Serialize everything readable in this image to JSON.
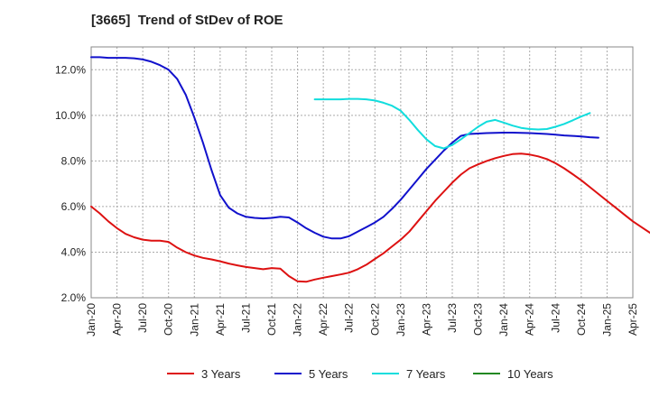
{
  "chart_data": {
    "type": "line",
    "title": "[3665]  Trend of StDev of ROE",
    "xlabel": "",
    "ylabel": "",
    "x_ticks": [
      "Jan-20",
      "Apr-20",
      "Jul-20",
      "Oct-20",
      "Jan-21",
      "Apr-21",
      "Jul-21",
      "Oct-21",
      "Jan-22",
      "Apr-22",
      "Jul-22",
      "Oct-22",
      "Jan-23",
      "Apr-23",
      "Jul-23",
      "Oct-23",
      "Jan-24",
      "Apr-24",
      "Jul-24",
      "Oct-24",
      "Jan-25",
      "Apr-25"
    ],
    "ylim": [
      2.0,
      13.0
    ],
    "y_ticks": [
      2.0,
      4.0,
      6.0,
      8.0,
      10.0,
      12.0
    ],
    "y_tick_labels": [
      "2.0%",
      "4.0%",
      "6.0%",
      "8.0%",
      "10.0%",
      "12.0%"
    ],
    "grid": true,
    "legend_position": "bottom",
    "series": [
      {
        "name": "3 Years",
        "color": "#dd1111",
        "start_index": 0,
        "values": [
          6.0,
          5.7,
          5.35,
          5.05,
          4.8,
          4.65,
          4.55,
          4.5,
          4.5,
          4.45,
          4.2,
          4.0,
          3.85,
          3.75,
          3.68,
          3.6,
          3.5,
          3.42,
          3.35,
          3.3,
          3.25,
          3.3,
          3.28,
          2.95,
          2.72,
          2.7,
          2.8,
          2.88,
          2.95,
          3.02,
          3.1,
          3.25,
          3.45,
          3.7,
          3.95,
          4.25,
          4.55,
          4.9,
          5.35,
          5.8,
          6.25,
          6.65,
          7.05,
          7.4,
          7.68,
          7.85,
          8.0,
          8.12,
          8.22,
          8.3,
          8.32,
          8.28,
          8.2,
          8.08,
          7.9,
          7.68,
          7.42,
          7.15,
          6.85,
          6.55,
          6.25,
          5.95,
          5.65,
          5.35,
          5.1,
          4.85
        ]
      },
      {
        "name": "5 Years",
        "color": "#1111cc",
        "start_index": 0,
        "values": [
          12.55,
          12.55,
          12.52,
          12.52,
          12.52,
          12.5,
          12.45,
          12.35,
          12.2,
          12.0,
          11.6,
          10.9,
          9.9,
          8.8,
          7.6,
          6.5,
          5.95,
          5.7,
          5.55,
          5.5,
          5.48,
          5.5,
          5.55,
          5.52,
          5.3,
          5.05,
          4.85,
          4.68,
          4.6,
          4.6,
          4.7,
          4.9,
          5.1,
          5.3,
          5.55,
          5.9,
          6.3,
          6.75,
          7.2,
          7.65,
          8.05,
          8.45,
          8.8,
          9.1,
          9.18,
          9.2,
          9.22,
          9.23,
          9.24,
          9.24,
          9.23,
          9.22,
          9.2,
          9.18,
          9.15,
          9.12,
          9.1,
          9.07,
          9.04,
          9.02
        ]
      },
      {
        "name": "7 Years",
        "color": "#11dddd",
        "start_index": 26,
        "values": [
          10.7,
          10.7,
          10.7,
          10.7,
          10.72,
          10.72,
          10.7,
          10.65,
          10.55,
          10.42,
          10.2,
          9.8,
          9.35,
          8.95,
          8.65,
          8.55,
          8.7,
          8.95,
          9.22,
          9.5,
          9.72,
          9.8,
          9.68,
          9.55,
          9.45,
          9.4,
          9.38,
          9.4,
          9.5,
          9.62,
          9.78,
          9.95,
          10.1
        ]
      },
      {
        "name": "10 Years",
        "color": "#228822",
        "start_index": 0,
        "values": []
      }
    ]
  }
}
